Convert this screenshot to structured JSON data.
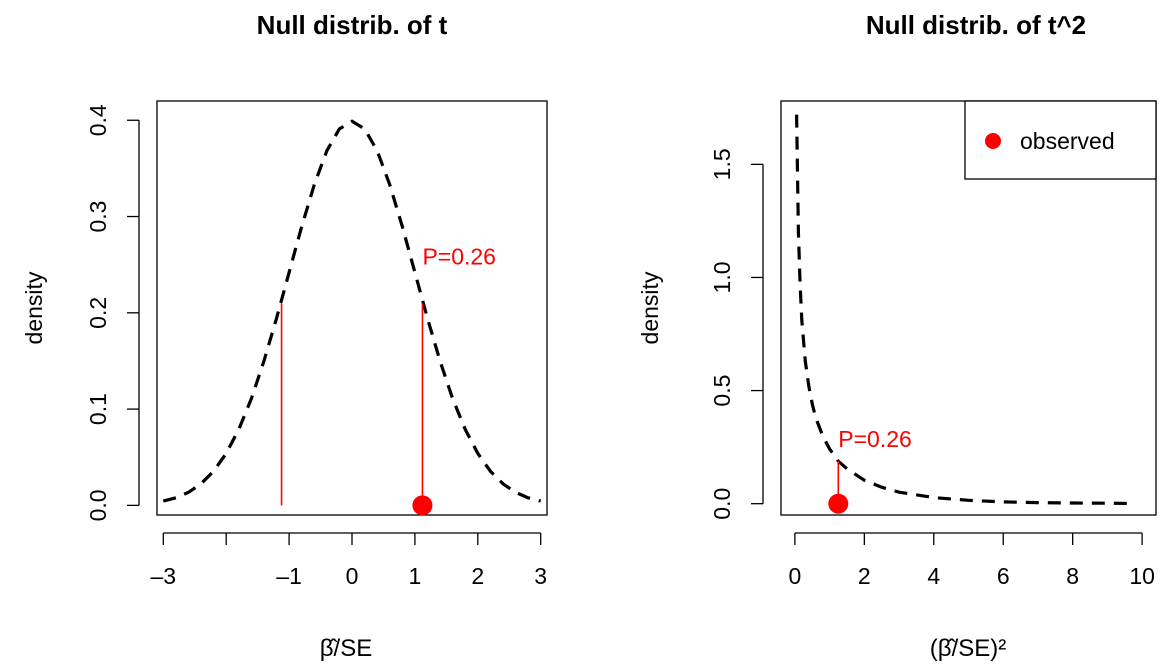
{
  "chart_data": [
    {
      "type": "line",
      "title": "Null distrib. of t",
      "xlabel": "β̂/SE",
      "ylabel": "density",
      "xlim": [
        -3.1,
        3.1
      ],
      "ylim": [
        -0.01,
        0.42
      ],
      "x_ticks": [
        -3,
        -2,
        -1,
        0,
        1,
        2,
        3
      ],
      "x_tick_labels": [
        "–3",
        "",
        "–1",
        "0",
        "1",
        "2",
        "3"
      ],
      "y_ticks": [
        0.0,
        0.1,
        0.2,
        0.3,
        0.4
      ],
      "y_tick_labels": [
        "0.0",
        "0.1",
        "0.2",
        "0.3",
        "0.4"
      ],
      "curve": {
        "style": "dashed",
        "color": "#000000",
        "x": [
          -3.0,
          -2.8,
          -2.6,
          -2.4,
          -2.2,
          -2.0,
          -1.8,
          -1.6,
          -1.4,
          -1.2,
          -1.0,
          -0.8,
          -0.6,
          -0.4,
          -0.2,
          0.0,
          0.2,
          0.4,
          0.6,
          0.8,
          1.0,
          1.2,
          1.4,
          1.6,
          1.8,
          2.0,
          2.2,
          2.4,
          2.6,
          2.8,
          3.0
        ],
        "y": [
          0.0044,
          0.0079,
          0.0136,
          0.0224,
          0.0355,
          0.054,
          0.079,
          0.1109,
          0.1497,
          0.1942,
          0.242,
          0.2897,
          0.3332,
          0.3683,
          0.391,
          0.3989,
          0.391,
          0.3683,
          0.3332,
          0.2897,
          0.242,
          0.1942,
          0.1497,
          0.1109,
          0.079,
          0.054,
          0.0355,
          0.0224,
          0.0136,
          0.0079,
          0.0044
        ]
      },
      "segments": [
        {
          "x": -1.12,
          "y0": 0.0,
          "y1": 0.21,
          "color": "#ff0000"
        },
        {
          "x": 1.12,
          "y0": 0.0,
          "y1": 0.21,
          "color": "#ff0000"
        }
      ],
      "observed_point": {
        "x": 1.12,
        "y": 0.0,
        "color": "#ff0000"
      },
      "annotation": {
        "text": "P=0.26",
        "x": 1.12,
        "y": 0.25,
        "color": "#ff0000"
      }
    },
    {
      "type": "line",
      "title": "Null distrib. of t^2",
      "xlabel": "(β̂/SE)²",
      "ylabel": "density",
      "xlim": [
        -0.4,
        10.4
      ],
      "ylim": [
        -0.05,
        1.78
      ],
      "x_ticks": [
        0,
        2,
        4,
        6,
        8,
        10
      ],
      "x_tick_labels": [
        "0",
        "2",
        "4",
        "6",
        "8",
        "10"
      ],
      "y_ticks": [
        0.0,
        0.5,
        1.0,
        1.5
      ],
      "y_tick_labels": [
        "0.0",
        "0.5",
        "1.0",
        "1.5"
      ],
      "curve": {
        "style": "dashed",
        "color": "#000000",
        "x": [
          0.05,
          0.1,
          0.15,
          0.2,
          0.3,
          0.4,
          0.5,
          0.6,
          0.8,
          1.0,
          1.25,
          1.5,
          2.0,
          2.5,
          3.0,
          4.0,
          5.0,
          6.0,
          7.0,
          8.0,
          9.0,
          9.7
        ],
        "y": [
          1.72,
          1.2,
          0.97,
          0.81,
          0.63,
          0.52,
          0.44,
          0.38,
          0.3,
          0.242,
          0.188,
          0.154,
          0.104,
          0.073,
          0.051,
          0.027,
          0.015,
          0.008,
          0.005,
          0.003,
          0.002,
          0.001
        ]
      },
      "segments": [
        {
          "x": 1.25,
          "y0": 0.0,
          "y1": 0.19,
          "color": "#ff0000"
        }
      ],
      "observed_point": {
        "x": 1.25,
        "y": 0.0,
        "color": "#ff0000"
      },
      "annotation": {
        "text": "P=0.26",
        "x": 1.25,
        "y": 0.25,
        "color": "#ff0000"
      },
      "legend": {
        "position": "top-right",
        "entries": [
          {
            "label": "observed",
            "color": "#ff0000",
            "marker": "circle"
          }
        ]
      }
    }
  ]
}
